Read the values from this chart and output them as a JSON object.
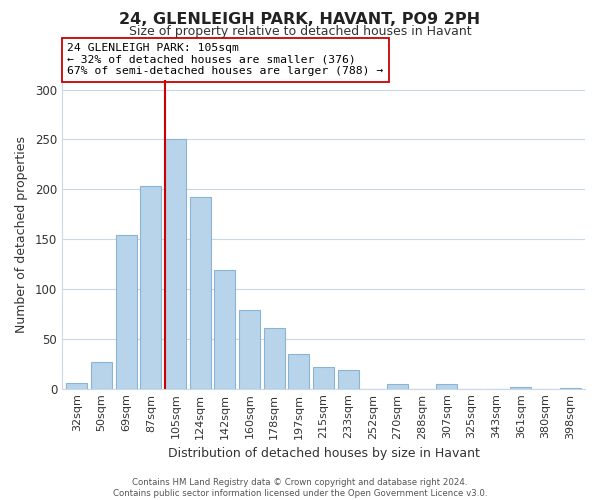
{
  "title": "24, GLENLEIGH PARK, HAVANT, PO9 2PH",
  "subtitle": "Size of property relative to detached houses in Havant",
  "xlabel": "Distribution of detached houses by size in Havant",
  "ylabel": "Number of detached properties",
  "bar_labels": [
    "32sqm",
    "50sqm",
    "69sqm",
    "87sqm",
    "105sqm",
    "124sqm",
    "142sqm",
    "160sqm",
    "178sqm",
    "197sqm",
    "215sqm",
    "233sqm",
    "252sqm",
    "270sqm",
    "288sqm",
    "307sqm",
    "325sqm",
    "343sqm",
    "361sqm",
    "380sqm",
    "398sqm"
  ],
  "bar_values": [
    6,
    27,
    154,
    203,
    250,
    192,
    119,
    79,
    61,
    35,
    22,
    19,
    0,
    5,
    0,
    5,
    0,
    0,
    2,
    0,
    1
  ],
  "bar_color": "#b8d4ea",
  "bar_edge_color": "#8ab4d4",
  "highlight_index": 4,
  "highlight_color": "#cc0000",
  "ylim": [
    0,
    310
  ],
  "yticks": [
    0,
    50,
    100,
    150,
    200,
    250,
    300
  ],
  "annotation_title": "24 GLENLEIGH PARK: 105sqm",
  "annotation_line1": "← 32% of detached houses are smaller (376)",
  "annotation_line2": "67% of semi-detached houses are larger (788) →",
  "annotation_box_color": "#ffffff",
  "annotation_box_edge": "#cc0000",
  "footer_line1": "Contains HM Land Registry data © Crown copyright and database right 2024.",
  "footer_line2": "Contains public sector information licensed under the Open Government Licence v3.0.",
  "background_color": "#ffffff",
  "grid_color": "#c8d8e8"
}
